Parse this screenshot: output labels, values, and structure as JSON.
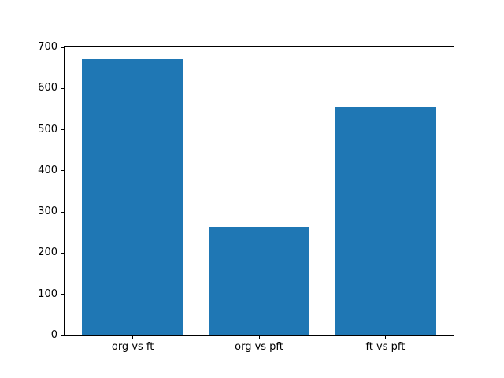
{
  "figure": {
    "background_color": "#ffffff",
    "axis_color": "#000000",
    "bar_color": "#1f77b4"
  },
  "chart_data": {
    "type": "bar",
    "categories": [
      "org vs ft",
      "org vs pft",
      "ft vs pft"
    ],
    "values": [
      671,
      264,
      555
    ],
    "title": "",
    "xlabel": "",
    "ylabel": "",
    "ylim": [
      0,
      700
    ],
    "yticks": [
      0,
      100,
      200,
      300,
      400,
      500,
      600,
      700
    ],
    "xlim": [
      -0.54,
      2.54
    ],
    "bar_width_units": 0.8,
    "grid": false,
    "legend": null
  }
}
